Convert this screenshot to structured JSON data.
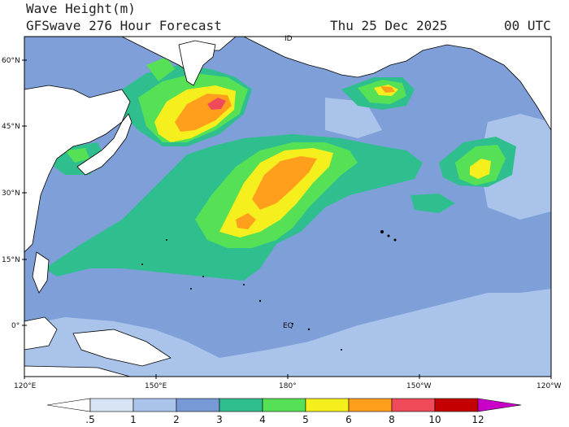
{
  "title_line1": "Wave Height(m)",
  "title_line2_left": "GFSwave 276 Hour Forecast",
  "title_line2_mid": "Thu 25 Dec 2025",
  "title_line2_right": "00 UTC",
  "map_labels": {
    "equator": "EQ",
    "dateline": "ID"
  },
  "lat_ticks": [
    "60°N",
    "45°N",
    "30°N",
    "15°N",
    "0°"
  ],
  "lon_ticks": [
    "120°E",
    "150°E",
    "180°",
    "150°W",
    "120°W"
  ],
  "colorbar": {
    "labels": [
      ".5",
      "1",
      "2",
      "3",
      "4",
      "5",
      "6",
      "8",
      "10",
      "12"
    ],
    "colors": [
      "#ffffff",
      "#d8e4f4",
      "#a9c3ea",
      "#7799d6",
      "#2fbf8e",
      "#56e056",
      "#f5ef1e",
      "#ff9f1c",
      "#ef4a5a",
      "#c40000",
      "#c800c8"
    ]
  },
  "palette": {
    "land": "#ffffff",
    "coast": "#000000",
    "background_sea": "#7e9fd8"
  }
}
